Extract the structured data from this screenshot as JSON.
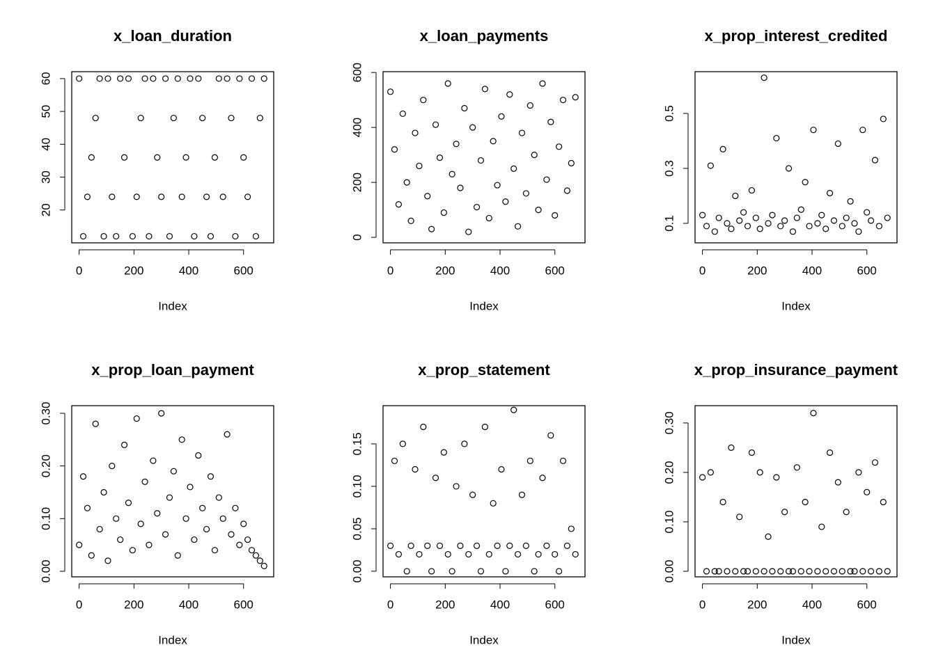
{
  "chart_data": [
    {
      "type": "scatter",
      "title": "x_loan_duration",
      "x_label": "Index",
      "color": "#000000",
      "x": [
        0,
        15,
        30,
        45,
        60,
        75,
        90,
        105,
        120,
        135,
        150,
        165,
        180,
        195,
        210,
        225,
        240,
        255,
        270,
        285,
        300,
        315,
        330,
        345,
        360,
        375,
        390,
        405,
        420,
        435,
        450,
        465,
        480,
        495,
        510,
        525,
        540,
        555,
        570,
        585,
        600,
        615,
        630,
        645,
        660,
        675
      ],
      "values": [
        60,
        12,
        24,
        36,
        48,
        60,
        12,
        60,
        24,
        12,
        60,
        36,
        60,
        12,
        24,
        48,
        60,
        12,
        60,
        36,
        24,
        60,
        12,
        48,
        60,
        24,
        36,
        60,
        12,
        60,
        48,
        24,
        12,
        36,
        60,
        24,
        60,
        48,
        12,
        60,
        36,
        24,
        60,
        12,
        48,
        60
      ],
      "xlim": [
        -27,
        710
      ],
      "ylim": [
        10,
        62.1
      ],
      "xticks": [
        0,
        200,
        400,
        600
      ],
      "yticks": [
        20,
        30,
        40,
        50,
        60
      ]
    },
    {
      "type": "scatter",
      "title": "x_loan_payments",
      "x_label": "Index",
      "color": "#000000",
      "x": [
        0,
        15,
        30,
        45,
        60,
        75,
        90,
        105,
        120,
        135,
        150,
        165,
        180,
        195,
        210,
        225,
        240,
        255,
        270,
        285,
        300,
        315,
        330,
        345,
        360,
        375,
        390,
        405,
        420,
        435,
        450,
        465,
        480,
        495,
        510,
        525,
        540,
        555,
        570,
        585,
        600,
        615,
        630,
        645,
        660,
        675
      ],
      "values": [
        530,
        320,
        120,
        450,
        200,
        60,
        380,
        260,
        500,
        150,
        30,
        410,
        290,
        90,
        560,
        230,
        340,
        180,
        470,
        20,
        400,
        110,
        280,
        540,
        70,
        350,
        190,
        440,
        130,
        520,
        250,
        40,
        380,
        160,
        480,
        300,
        100,
        560,
        210,
        420,
        80,
        330,
        500,
        170,
        270,
        510
      ],
      "xlim": [
        -27,
        710
      ],
      "ylim": [
        -20,
        603
      ],
      "xticks": [
        0,
        200,
        400,
        600
      ],
      "yticks": [
        0,
        200,
        400,
        600
      ]
    },
    {
      "type": "scatter",
      "title": "x_prop_interest_credited",
      "x_label": "Index",
      "color": "#000000",
      "x": [
        0,
        15,
        30,
        45,
        60,
        75,
        90,
        105,
        120,
        135,
        150,
        165,
        180,
        195,
        210,
        225,
        240,
        255,
        270,
        285,
        300,
        315,
        330,
        345,
        360,
        375,
        390,
        405,
        420,
        435,
        450,
        465,
        480,
        495,
        510,
        525,
        540,
        555,
        570,
        585,
        600,
        615,
        630,
        645,
        660,
        675
      ],
      "values": [
        0.13,
        0.09,
        0.31,
        0.07,
        0.12,
        0.37,
        0.1,
        0.08,
        0.2,
        0.11,
        0.14,
        0.09,
        0.22,
        0.12,
        0.08,
        0.63,
        0.1,
        0.13,
        0.41,
        0.09,
        0.11,
        0.3,
        0.07,
        0.12,
        0.15,
        0.25,
        0.09,
        0.44,
        0.1,
        0.13,
        0.08,
        0.21,
        0.11,
        0.39,
        0.09,
        0.12,
        0.18,
        0.1,
        0.07,
        0.44,
        0.14,
        0.11,
        0.33,
        0.09,
        0.48,
        0.12
      ],
      "xlim": [
        -27,
        710
      ],
      "ylim": [
        0.029,
        0.652
      ],
      "xticks": [
        0,
        200,
        400,
        600
      ],
      "yticks": [
        0.1,
        0.3,
        0.5
      ]
    },
    {
      "type": "scatter",
      "title": "x_prop_loan_payment",
      "x_label": "Index",
      "color": "#000000",
      "x": [
        0,
        15,
        30,
        45,
        60,
        75,
        90,
        105,
        120,
        135,
        150,
        165,
        180,
        195,
        210,
        225,
        240,
        255,
        270,
        285,
        300,
        315,
        330,
        345,
        360,
        375,
        390,
        405,
        420,
        435,
        450,
        465,
        480,
        495,
        510,
        525,
        540,
        555,
        570,
        585,
        600,
        615,
        630,
        645,
        660,
        675
      ],
      "values": [
        0.05,
        0.18,
        0.12,
        0.03,
        0.28,
        0.08,
        0.15,
        0.02,
        0.2,
        0.1,
        0.06,
        0.24,
        0.13,
        0.04,
        0.29,
        0.09,
        0.17,
        0.05,
        0.21,
        0.11,
        0.3,
        0.07,
        0.14,
        0.19,
        0.03,
        0.25,
        0.1,
        0.16,
        0.06,
        0.22,
        0.12,
        0.08,
        0.18,
        0.04,
        0.14,
        0.1,
        0.26,
        0.07,
        0.12,
        0.05,
        0.09,
        0.06,
        0.04,
        0.03,
        0.02,
        0.01
      ],
      "xlim": [
        -27,
        710
      ],
      "ylim": [
        -0.0106,
        0.3145
      ],
      "xticks": [
        0,
        200,
        400,
        600
      ],
      "yticks": [
        {
          "value": 0,
          "label": "0.00"
        },
        {
          "value": 0.1,
          "label": "0.10"
        },
        {
          "value": 0.2,
          "label": "0.20"
        },
        {
          "value": 0.3,
          "label": "0.30"
        }
      ]
    },
    {
      "type": "scatter",
      "title": "x_prop_statement",
      "x_label": "Index",
      "color": "#000000",
      "x": [
        0,
        15,
        30,
        45,
        60,
        75,
        90,
        105,
        120,
        135,
        150,
        165,
        180,
        195,
        210,
        225,
        240,
        255,
        270,
        285,
        300,
        315,
        330,
        345,
        360,
        375,
        390,
        405,
        420,
        435,
        450,
        465,
        480,
        495,
        510,
        525,
        540,
        555,
        570,
        585,
        600,
        615,
        630,
        645,
        660,
        675
      ],
      "values": [
        0.03,
        0.13,
        0.02,
        0.15,
        0.0,
        0.03,
        0.12,
        0.02,
        0.17,
        0.03,
        0.0,
        0.11,
        0.03,
        0.14,
        0.02,
        0.0,
        0.1,
        0.03,
        0.15,
        0.02,
        0.09,
        0.03,
        0.0,
        0.17,
        0.02,
        0.08,
        0.03,
        0.12,
        0.0,
        0.03,
        0.19,
        0.02,
        0.09,
        0.03,
        0.13,
        0.0,
        0.02,
        0.11,
        0.03,
        0.16,
        0.02,
        0.0,
        0.13,
        0.03,
        0.05,
        0.02
      ],
      "xlim": [
        -27,
        710
      ],
      "ylim": [
        -0.0066,
        0.195
      ],
      "xticks": [
        0,
        200,
        400,
        600
      ],
      "yticks": [
        {
          "value": 0,
          "label": "0.00"
        },
        0.05,
        {
          "value": 0.1,
          "label": "0.10"
        },
        0.15
      ]
    },
    {
      "type": "scatter",
      "title": "x_prop_insurance_payment",
      "x_label": "Index",
      "color": "#000000",
      "x": [
        0,
        15,
        30,
        45,
        60,
        75,
        90,
        105,
        120,
        135,
        150,
        165,
        180,
        195,
        210,
        225,
        240,
        255,
        270,
        285,
        300,
        315,
        330,
        345,
        360,
        375,
        390,
        405,
        420,
        435,
        450,
        465,
        480,
        495,
        510,
        525,
        540,
        555,
        570,
        585,
        600,
        615,
        630,
        645,
        660,
        675
      ],
      "values": [
        0.19,
        0.0,
        0.2,
        0.0,
        0.0,
        0.14,
        0.0,
        0.25,
        0.0,
        0.11,
        0.0,
        0.0,
        0.24,
        0.0,
        0.2,
        0.0,
        0.07,
        0.0,
        0.19,
        0.0,
        0.12,
        0.0,
        0.0,
        0.21,
        0.0,
        0.14,
        0.0,
        0.32,
        0.0,
        0.09,
        0.0,
        0.24,
        0.0,
        0.18,
        0.0,
        0.12,
        0.0,
        0.0,
        0.2,
        0.0,
        0.16,
        0.0,
        0.22,
        0.0,
        0.14,
        0.0
      ],
      "xlim": [
        -27,
        710
      ],
      "ylim": [
        -0.0113,
        0.335
      ],
      "xticks": [
        0,
        200,
        400,
        600
      ],
      "yticks": [
        {
          "value": 0,
          "label": "0.00"
        },
        {
          "value": 0.1,
          "label": "0.10"
        },
        {
          "value": 0.2,
          "label": "0.20"
        },
        {
          "value": 0.3,
          "label": "0.30"
        }
      ]
    }
  ]
}
